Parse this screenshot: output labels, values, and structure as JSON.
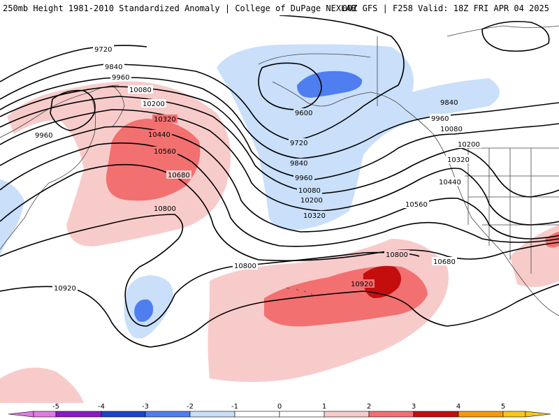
{
  "header": {
    "left_title": "250mb Height 1981-2010 Standardized Anomaly | College of DuPage NEXLAB",
    "right_title": "00Z GFS | F258 Valid: 18Z FRI APR 04 2025"
  },
  "colors": {
    "neg5": "#e07be0",
    "neg4": "#8a1bc4",
    "neg3": "#1b44c9",
    "neg2": "#4f7ef0",
    "neg1": "#c9dffa",
    "pos1": "#f8cbcb",
    "pos2": "#f37070",
    "pos3": "#c40e0e",
    "pos4": "#f59a0c",
    "pos5": "#f7c81a",
    "contour": "#000000",
    "coast": "#444444"
  },
  "contour_labels": {
    "c9720a": "9720",
    "c9840a": "9840",
    "c9960a": "9960",
    "c10080a": "10080",
    "c10200a": "10200",
    "c10320a": "10320",
    "c10440a": "10440",
    "c10560a": "10560",
    "c10680a": "10680",
    "c10800a": "10800",
    "c9960b": "9960",
    "c9600": "9600",
    "c9720b": "9720",
    "c9840b": "9840",
    "c9960c": "9960",
    "c10080b": "10080",
    "c10200b": "10200",
    "c10320b": "10320",
    "c9840c": "9840",
    "c9960d": "9960",
    "c10080c": "10080",
    "c10200c": "10200",
    "c10320c": "10320",
    "c10440b": "10440",
    "c10560b": "10560",
    "c10680b": "10680",
    "c10800b": "10800",
    "c10800c": "10800",
    "c10920a": "10920",
    "c10920b": "10920"
  },
  "colorbar": {
    "ticks": [
      "-5",
      "-4",
      "-3",
      "-2",
      "-1",
      "0",
      "1",
      "2",
      "3",
      "4",
      "5"
    ]
  }
}
